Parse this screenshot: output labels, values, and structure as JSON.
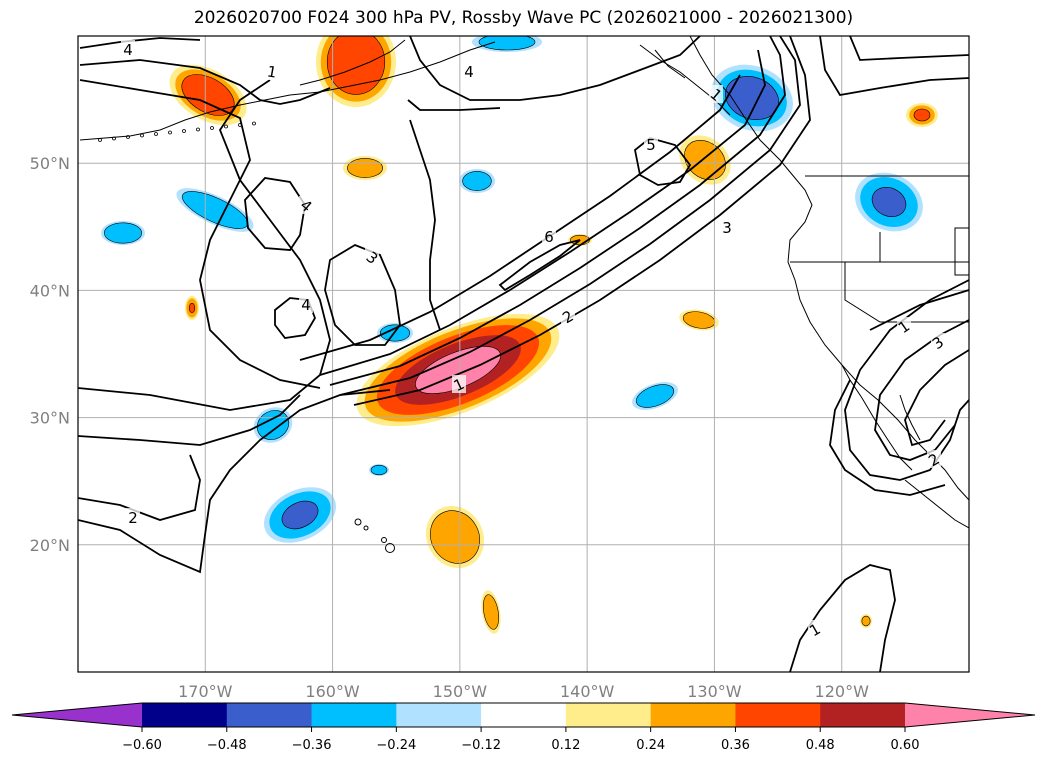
{
  "title": "2026020700 F024 300 hPa PV, Rossby Wave PC (2026021000 - 2026021300)",
  "chart_data": {
    "type": "contour_map",
    "title": "2026020700 F024 300 hPa PV, Rossby Wave PC (2026021000 - 2026021300)",
    "projection": "PlateCarree",
    "lon_range": [
      -180,
      -110
    ],
    "lat_range": [
      10,
      60
    ],
    "grid": true,
    "x_ticks": [
      "170°W",
      "160°W",
      "150°W",
      "140°W",
      "130°W",
      "120°W"
    ],
    "x_tick_values": [
      -170,
      -160,
      -150,
      -140,
      -130,
      -120
    ],
    "y_ticks": [
      "20°N",
      "30°N",
      "40°N",
      "50°N"
    ],
    "y_tick_values": [
      20,
      30,
      40,
      50
    ],
    "colorbar": {
      "orientation": "horizontal",
      "extend": "both",
      "levels": [
        -0.6,
        -0.48,
        -0.36,
        -0.24,
        -0.12,
        0.12,
        0.24,
        0.36,
        0.48,
        0.6
      ],
      "tick_labels": [
        "−0.60",
        "−0.48",
        "−0.36",
        "−0.24",
        "−0.12",
        "0.12",
        "0.24",
        "0.36",
        "0.48",
        "0.60"
      ],
      "colors": [
        "#9932cc",
        "#00008b",
        "#3a5fcd",
        "#00bfff",
        "#b0e2ff",
        "#ffffff",
        "#ffec8b",
        "#ffa500",
        "#ff4500",
        "#b22222",
        "#ff82ab"
      ]
    },
    "pv_contour_labels": [
      "4",
      "1",
      "4",
      "3",
      "4",
      "1",
      "2",
      "2",
      "6",
      "5",
      "3",
      "1",
      "3",
      "1",
      "2",
      "4",
      "1"
    ],
    "anomaly_centers": [
      {
        "lon": -150,
        "lat": 32.5,
        "value": 0.62,
        "sign": "positive"
      },
      {
        "lon": -168,
        "lat": 56.5,
        "value": 0.42,
        "sign": "positive"
      },
      {
        "lon": -155.5,
        "lat": 58.5,
        "value": 0.45,
        "sign": "positive"
      },
      {
        "lon": -129,
        "lat": 55,
        "value": -0.45,
        "sign": "negative"
      },
      {
        "lon": -117,
        "lat": 47.5,
        "value": -0.4,
        "sign": "negative"
      },
      {
        "lon": -169.5,
        "lat": 46.5,
        "value": -0.3,
        "sign": "negative"
      },
      {
        "lon": -161.5,
        "lat": 22,
        "value": -0.45,
        "sign": "negative"
      },
      {
        "lon": -131,
        "lat": 49.5,
        "value": 0.32,
        "sign": "positive"
      },
      {
        "lon": -147.5,
        "lat": 21,
        "value": 0.3,
        "sign": "positive"
      },
      {
        "lon": -135.5,
        "lat": 31.5,
        "value": -0.28,
        "sign": "negative"
      }
    ]
  }
}
